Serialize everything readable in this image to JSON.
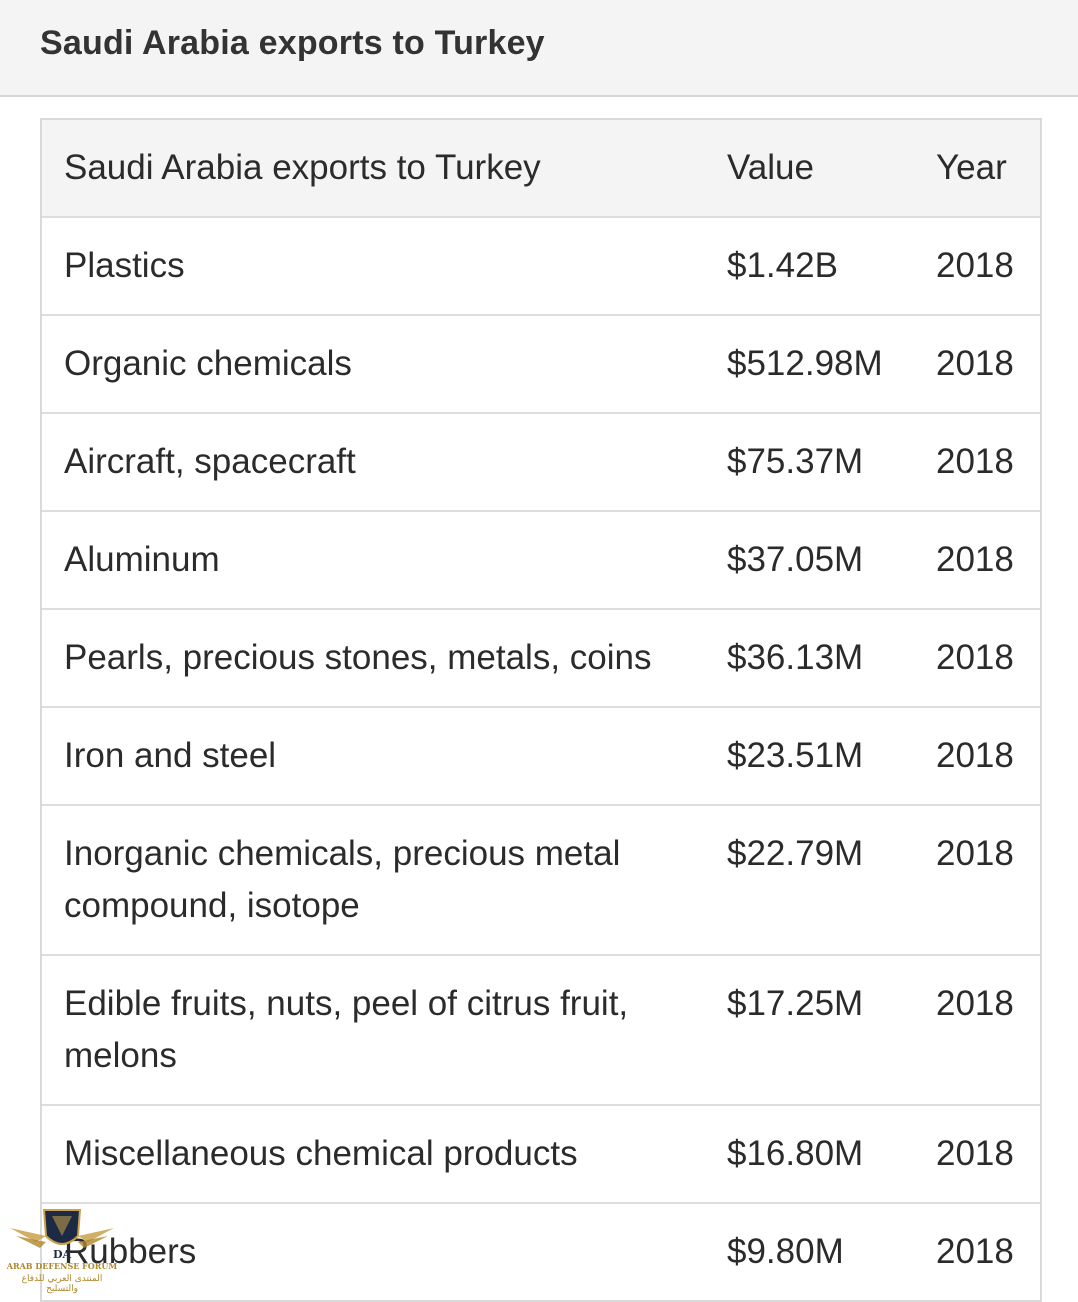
{
  "header": {
    "title": "Saudi Arabia exports to Turkey"
  },
  "table": {
    "columns": [
      "Saudi Arabia exports to Turkey",
      "Value",
      "Year"
    ],
    "rows": [
      {
        "name": "Plastics",
        "value": "$1.42B",
        "year": "2018"
      },
      {
        "name": "Organic chemicals",
        "value": "$512.98M",
        "year": "2018"
      },
      {
        "name": "Aircraft, spacecraft",
        "value": "$75.37M",
        "year": "2018"
      },
      {
        "name": "Aluminum",
        "value": "$37.05M",
        "year": "2018"
      },
      {
        "name": "Pearls, precious stones, metals, coins",
        "value": "$36.13M",
        "year": "2018"
      },
      {
        "name": "Iron and steel",
        "value": "$23.51M",
        "year": "2018"
      },
      {
        "name": "Inorganic chemicals, precious metal compound, isotope",
        "value": "$22.79M",
        "year": "2018"
      },
      {
        "name": "Edible fruits, nuts, peel of citrus fruit, melons",
        "value": "$17.25M",
        "year": "2018"
      },
      {
        "name": "Miscellaneous chemical products",
        "value": "$16.80M",
        "year": "2018"
      },
      {
        "name": "Rubbers",
        "value": "$9.80M",
        "year": "2018"
      }
    ]
  },
  "watermark": {
    "logo_letters": "DA",
    "name": "ARAB DEFENSE FORUM",
    "arabic": "المنتدى العربي للدفاع والتسليح"
  },
  "colors": {
    "header_bg": "#f4f4f4",
    "border": "#d9d9d9",
    "text": "#2b2b2b",
    "watermark_gold": "#b0862a"
  }
}
